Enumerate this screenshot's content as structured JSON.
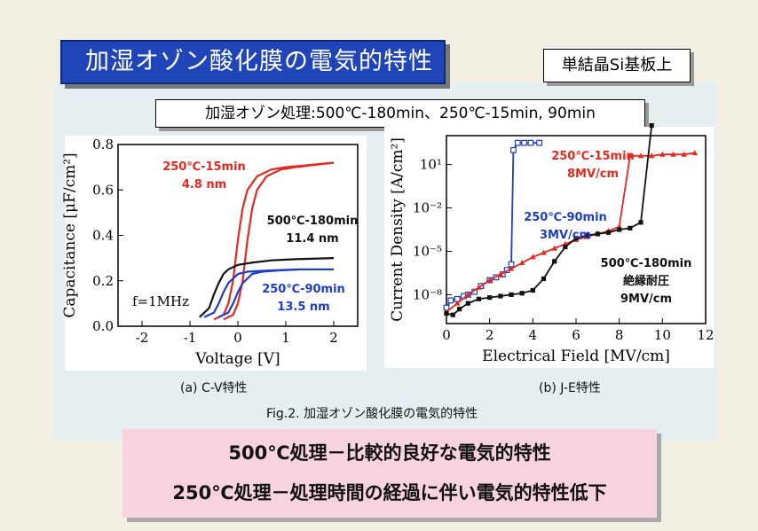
{
  "title": "加湿オゾン酸化膜の電気的特性",
  "substrate_tag": "単結晶Si基板上",
  "conditions": "加湿オゾン処理:500℃-180min、250℃-15min, 90min",
  "caption_a": "(a) C-V特性",
  "caption_b": "(b) J-E特性",
  "figure_caption": "Fig.2. 加湿オゾン酸化膜の電気的特性",
  "summary": [
    "500℃処理－比較的良好な電気的特性",
    "250℃処理－処理時間の経過に伴い電気的特性低下"
  ],
  "colors": {
    "red": "#e8281e",
    "blue": "#1e3ec8",
    "black": "#111111",
    "title_bg": "#1f45b8"
  },
  "chart_data": [
    {
      "type": "line",
      "xlabel": "Voltage [V]",
      "ylabel": "Capacitance [μF/cm²]",
      "xlim": [
        -2.5,
        2.5
      ],
      "ylim": [
        0,
        0.8
      ],
      "xticks": [
        -2,
        -1,
        0,
        1,
        2
      ],
      "yticks": [
        0.0,
        0.2,
        0.4,
        0.6,
        0.8
      ],
      "xtick_labels": [
        "-2",
        "-1",
        "0",
        "1",
        "2"
      ],
      "ytick_labels": [
        "0.0",
        "0.2",
        "0.4",
        "0.6",
        "0.8"
      ],
      "annotation": "f=1MHz",
      "series": [
        {
          "color": "#e8281e",
          "label_lines": [
            "250℃-15min",
            "4.8 nm"
          ],
          "x": [
            -0.5,
            -0.3,
            -0.2,
            -0.1,
            0.0,
            0.1,
            0.2,
            0.4,
            0.7,
            1.0,
            1.5,
            2.0
          ],
          "y": [
            0.03,
            0.05,
            0.1,
            0.2,
            0.38,
            0.52,
            0.6,
            0.66,
            0.69,
            0.7,
            0.71,
            0.72
          ]
        },
        {
          "color": "#e8281e",
          "x": [
            -0.3,
            -0.1,
            0.0,
            0.1,
            0.2,
            0.3,
            0.4,
            0.6,
            0.9,
            1.2,
            1.6,
            2.0
          ],
          "y": [
            0.03,
            0.05,
            0.1,
            0.2,
            0.38,
            0.52,
            0.6,
            0.66,
            0.69,
            0.7,
            0.71,
            0.72
          ]
        },
        {
          "color": "#111111",
          "label_lines": [
            "500℃-180min",
            "11.4 nm"
          ],
          "x": [
            -0.8,
            -0.6,
            -0.5,
            -0.4,
            -0.3,
            -0.2,
            0.0,
            0.3,
            0.7,
            1.2,
            2.0
          ],
          "y": [
            0.04,
            0.08,
            0.14,
            0.19,
            0.23,
            0.25,
            0.27,
            0.28,
            0.29,
            0.295,
            0.3
          ]
        },
        {
          "color": "#1e3ec8",
          "label_lines": [
            "250℃-90min",
            "13.5 nm"
          ],
          "x": [
            -0.7,
            -0.5,
            -0.4,
            -0.3,
            -0.2,
            -0.1,
            0.0,
            0.2,
            0.6,
            1.2,
            2.0
          ],
          "y": [
            0.04,
            0.06,
            0.1,
            0.15,
            0.19,
            0.21,
            0.23,
            0.24,
            0.245,
            0.25,
            0.25
          ]
        },
        {
          "color": "#1e3ec8",
          "x": [
            -0.4,
            -0.2,
            -0.1,
            0.0,
            0.1,
            0.2,
            0.3,
            0.5,
            0.8,
            1.3,
            2.0
          ],
          "y": [
            0.04,
            0.06,
            0.1,
            0.15,
            0.19,
            0.21,
            0.23,
            0.24,
            0.245,
            0.25,
            0.25
          ]
        }
      ]
    },
    {
      "type": "line",
      "xlabel": "Electrical Field [MV/cm]",
      "ylabel": "Current Density [A/cm²]",
      "xlim": [
        0,
        12
      ],
      "ylim_log10": [
        -10,
        3
      ],
      "xticks": [
        0,
        2,
        4,
        6,
        8,
        10,
        12
      ],
      "xtick_labels": [
        "0",
        "2",
        "4",
        "6",
        "8",
        "10",
        "12"
      ],
      "ytick_labels": [
        "10¹",
        "10⁻²",
        "10⁻⁵",
        "10⁻⁸"
      ],
      "ytick_log10": [
        1,
        -2,
        -5,
        -8
      ],
      "series": [
        {
          "color": "#1e3ec8",
          "marker": "square-open",
          "label_lines": [
            "250℃-90min",
            "3MV/cm"
          ],
          "x": [
            0.0,
            0.2,
            0.5,
            0.8,
            1.0,
            1.3,
            1.6,
            2.0,
            2.3,
            2.6,
            2.8,
            3.0,
            3.1,
            3.3,
            3.6,
            3.9,
            4.3
          ],
          "logy": [
            -8.9,
            -8.4,
            -8.3,
            -8.1,
            -8.0,
            -7.8,
            -7.4,
            -7.0,
            -6.8,
            -6.6,
            -6.3,
            -5.9,
            2.0,
            2.5,
            2.5,
            2.5,
            2.5
          ]
        },
        {
          "color": "#e8281e",
          "marker": "triangle",
          "label_lines": [
            "250℃-15min",
            "8MV/cm"
          ],
          "x": [
            0.0,
            0.5,
            1.0,
            1.5,
            2.0,
            2.5,
            3.0,
            3.5,
            4.0,
            4.5,
            5.0,
            5.5,
            6.0,
            6.5,
            7.0,
            7.5,
            8.0,
            8.5,
            9.0,
            9.5,
            10.0,
            10.5,
            11.0,
            11.5
          ],
          "logy": [
            -9.2,
            -8.6,
            -8.0,
            -7.5,
            -7.0,
            -6.6,
            -6.2,
            -5.8,
            -5.4,
            -5.1,
            -4.8,
            -4.5,
            -4.2,
            -4.0,
            -3.8,
            -3.6,
            -3.3,
            1.6,
            1.6,
            1.6,
            1.7,
            1.7,
            1.7,
            1.8
          ]
        },
        {
          "color": "#111111",
          "marker": "square-filled",
          "label_lines": [
            "500℃-180min",
            "絶縁耐圧",
            "9MV/cm"
          ],
          "x": [
            0.0,
            0.3,
            0.6,
            1.0,
            1.5,
            2.0,
            2.5,
            3.0,
            3.5,
            4.0,
            4.5,
            5.0,
            5.5,
            6.0,
            6.5,
            7.0,
            7.5,
            8.0,
            8.5,
            9.0,
            9.5
          ],
          "logy": [
            -9.3,
            -9.4,
            -9.0,
            -8.6,
            -8.3,
            -8.2,
            -8.1,
            -8.0,
            -7.9,
            -7.7,
            -6.9,
            -5.7,
            -4.7,
            -4.1,
            -3.9,
            -3.8,
            -3.7,
            -3.5,
            -3.4,
            -3.0,
            3.7
          ]
        }
      ]
    }
  ]
}
